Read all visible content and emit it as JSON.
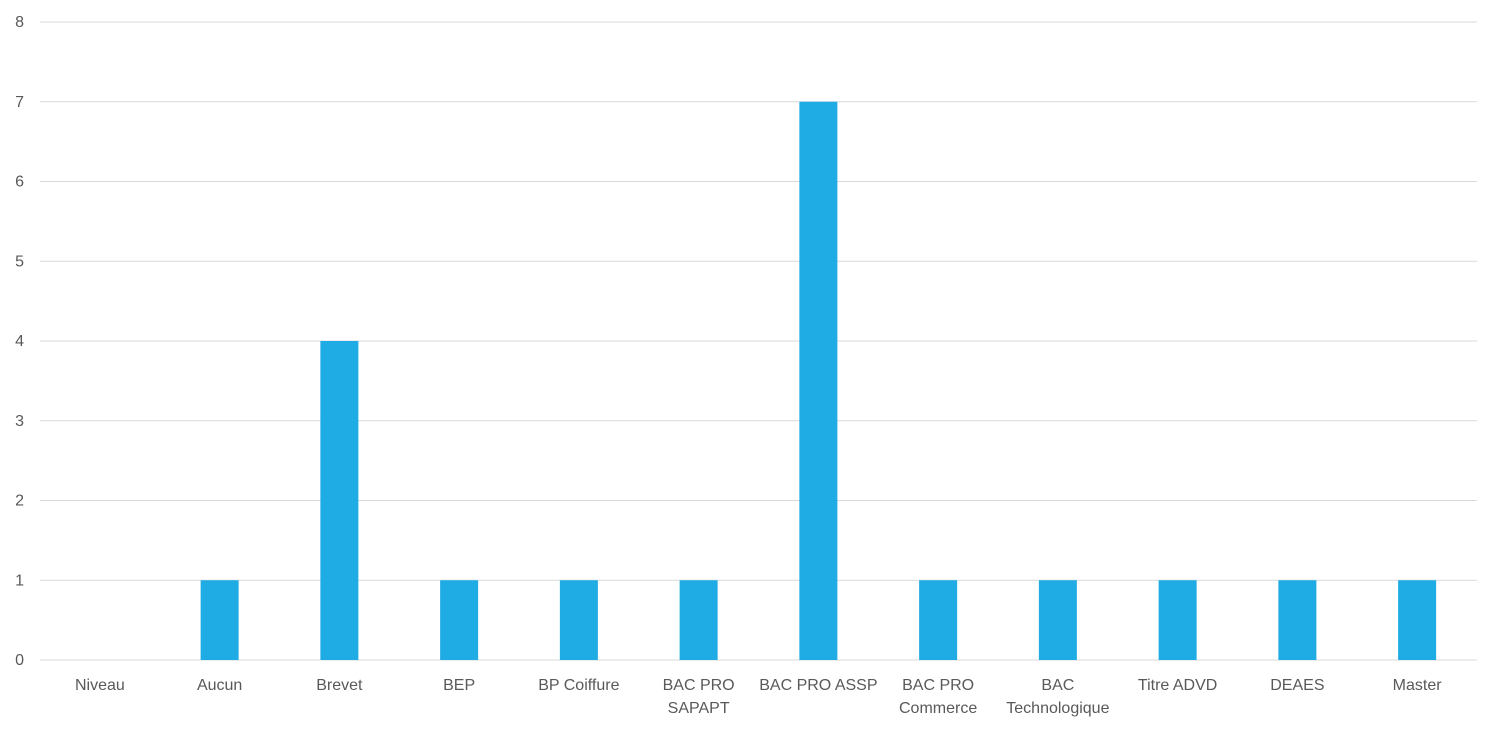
{
  "chart_data": {
    "type": "bar",
    "title": "",
    "xlabel": "",
    "ylabel": "",
    "ylim": [
      0,
      8
    ],
    "yticks": [
      0,
      1,
      2,
      3,
      4,
      5,
      6,
      7,
      8
    ],
    "grid": true,
    "legend": "none",
    "bar_color": "#1FABE3",
    "categories": [
      [
        "Niveau"
      ],
      [
        "Aucun"
      ],
      [
        "Brevet"
      ],
      [
        "BEP"
      ],
      [
        "BP Coiffure"
      ],
      [
        "BAC PRO",
        "SAPAPT"
      ],
      [
        "BAC PRO ASSP"
      ],
      [
        "BAC PRO",
        "Commerce"
      ],
      [
        "BAC",
        "Technologique"
      ],
      [
        "Titre ADVD"
      ],
      [
        "DEAES"
      ],
      [
        "Master"
      ]
    ],
    "values": [
      null,
      1,
      4,
      1,
      1,
      1,
      7,
      1,
      1,
      1,
      1,
      1
    ]
  }
}
